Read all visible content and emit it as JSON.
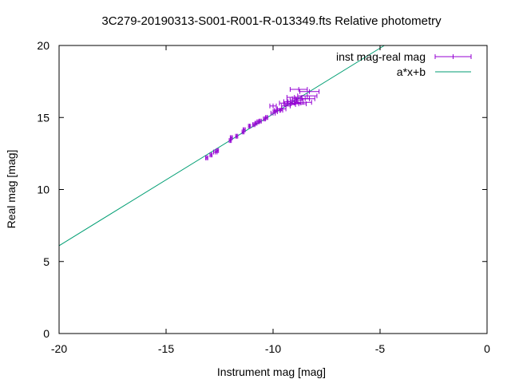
{
  "chart_data": {
    "type": "scatter",
    "title": "3C279-20190313-S001-R001-R-013349.fts Relative photometry",
    "xlabel": "Instrument mag [mag]",
    "ylabel": "Real mag [mag]",
    "xlim": [
      -20,
      0
    ],
    "ylim": [
      0,
      20
    ],
    "xticks": [
      -20,
      -15,
      -10,
      -5,
      0
    ],
    "yticks": [
      0,
      5,
      10,
      15,
      20
    ],
    "xtick_labels": [
      "-20",
      "-15",
      "-10",
      "-5",
      "0"
    ],
    "ytick_labels": [
      "0",
      "5",
      "10",
      "15",
      "20"
    ],
    "grid": false,
    "legend_position": "top-right",
    "series": [
      {
        "name": "inst mag-real mag",
        "kind": "points-with-x-errorbars",
        "color": "#9400d3",
        "points": [
          {
            "x": -13.1,
            "y": 12.2,
            "xerr": 0.05
          },
          {
            "x": -12.9,
            "y": 12.4,
            "xerr": 0.05
          },
          {
            "x": -12.7,
            "y": 12.6,
            "xerr": 0.08
          },
          {
            "x": -12.6,
            "y": 12.7,
            "xerr": 0.05
          },
          {
            "x": -12.0,
            "y": 13.4,
            "xerr": 0.05
          },
          {
            "x": -11.95,
            "y": 13.6,
            "xerr": 0.05
          },
          {
            "x": -11.7,
            "y": 13.7,
            "xerr": 0.05
          },
          {
            "x": -11.4,
            "y": 14.0,
            "xerr": 0.05
          },
          {
            "x": -11.35,
            "y": 14.15,
            "xerr": 0.05
          },
          {
            "x": -11.1,
            "y": 14.4,
            "xerr": 0.05
          },
          {
            "x": -10.9,
            "y": 14.5,
            "xerr": 0.05
          },
          {
            "x": -10.8,
            "y": 14.6,
            "xerr": 0.05
          },
          {
            "x": -10.7,
            "y": 14.7,
            "xerr": 0.05
          },
          {
            "x": -10.6,
            "y": 14.75,
            "xerr": 0.05
          },
          {
            "x": -10.4,
            "y": 14.9,
            "xerr": 0.05
          },
          {
            "x": -10.3,
            "y": 15.0,
            "xerr": 0.05
          },
          {
            "x": -10.0,
            "y": 15.3,
            "xerr": 0.1
          },
          {
            "x": -9.9,
            "y": 15.4,
            "xerr": 0.1
          },
          {
            "x": -9.8,
            "y": 15.5,
            "xerr": 0.15
          },
          {
            "x": -10.0,
            "y": 15.8,
            "xerr": 0.15
          },
          {
            "x": -9.7,
            "y": 15.5,
            "xerr": 0.15
          },
          {
            "x": -9.6,
            "y": 15.6,
            "xerr": 0.2
          },
          {
            "x": -9.5,
            "y": 16.0,
            "xerr": 0.2
          },
          {
            "x": -9.4,
            "y": 15.8,
            "xerr": 0.2
          },
          {
            "x": -9.3,
            "y": 16.1,
            "xerr": 0.2
          },
          {
            "x": -9.2,
            "y": 15.9,
            "xerr": 0.25
          },
          {
            "x": -9.1,
            "y": 16.1,
            "xerr": 0.25
          },
          {
            "x": -9.0,
            "y": 16.0,
            "xerr": 0.3
          },
          {
            "x": -8.9,
            "y": 16.2,
            "xerr": 0.3
          },
          {
            "x": -9.0,
            "y": 16.4,
            "xerr": 0.35
          },
          {
            "x": -8.8,
            "y": 15.95,
            "xerr": 0.35
          },
          {
            "x": -8.7,
            "y": 16.3,
            "xerr": 0.4
          },
          {
            "x": -8.6,
            "y": 16.05,
            "xerr": 0.4
          },
          {
            "x": -8.5,
            "y": 16.3,
            "xerr": 0.45
          },
          {
            "x": -8.4,
            "y": 16.5,
            "xerr": 0.45
          },
          {
            "x": -8.3,
            "y": 16.8,
            "xerr": 0.45
          },
          {
            "x": -8.8,
            "y": 16.95,
            "xerr": 0.4
          }
        ]
      },
      {
        "name": "a*x+b",
        "kind": "line",
        "color": "#009e73",
        "points": [
          {
            "x": -20,
            "y": 6.1
          },
          {
            "x": -4.8,
            "y": 20
          }
        ]
      }
    ]
  }
}
